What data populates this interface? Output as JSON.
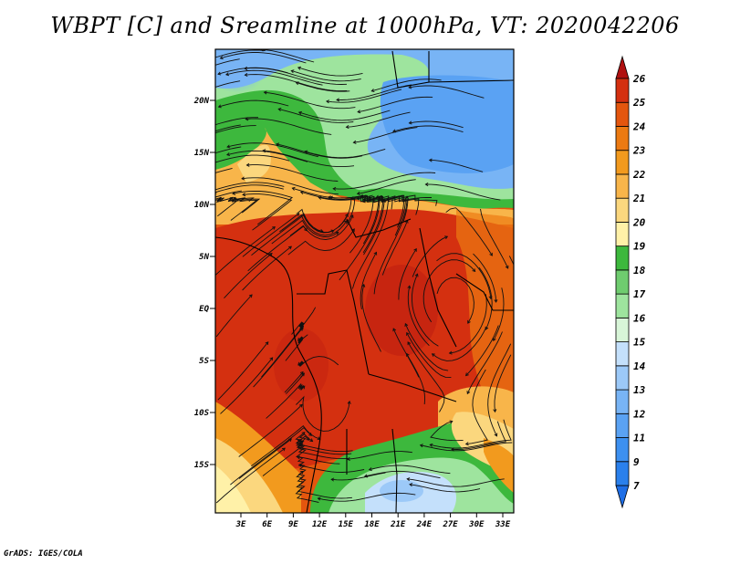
{
  "title": "WBPT [C] and Sreamline at 1000hPa, VT: 2020042206",
  "footer": "GrADS: IGES/COLA",
  "map": {
    "lat_labels": [
      "20N",
      "15N",
      "10N",
      "5N",
      "EQ",
      "5S",
      "10S",
      "15S"
    ],
    "lon_labels": [
      "3E",
      "6E",
      "9E",
      "12E",
      "15E",
      "18E",
      "21E",
      "24E",
      "27E",
      "30E",
      "33E"
    ]
  },
  "colorbar": {
    "labels": [
      "7",
      "9",
      "11",
      "12",
      "13",
      "14",
      "15",
      "16",
      "17",
      "18",
      "19",
      "20",
      "21",
      "22",
      "23",
      "24",
      "25",
      "26"
    ],
    "colors": [
      "#1e6ee6",
      "#2a80ec",
      "#3d90f0",
      "#5aa2f3",
      "#78b4f5",
      "#9cc9f8",
      "#c4e0fb",
      "#d8f5d8",
      "#9ee49e",
      "#6fcc6f",
      "#3db83d",
      "#fff1a8",
      "#fbd77e",
      "#f8b54a",
      "#f29a1e",
      "#ec7a12",
      "#e4560e",
      "#d43010",
      "#b01010"
    ]
  }
}
